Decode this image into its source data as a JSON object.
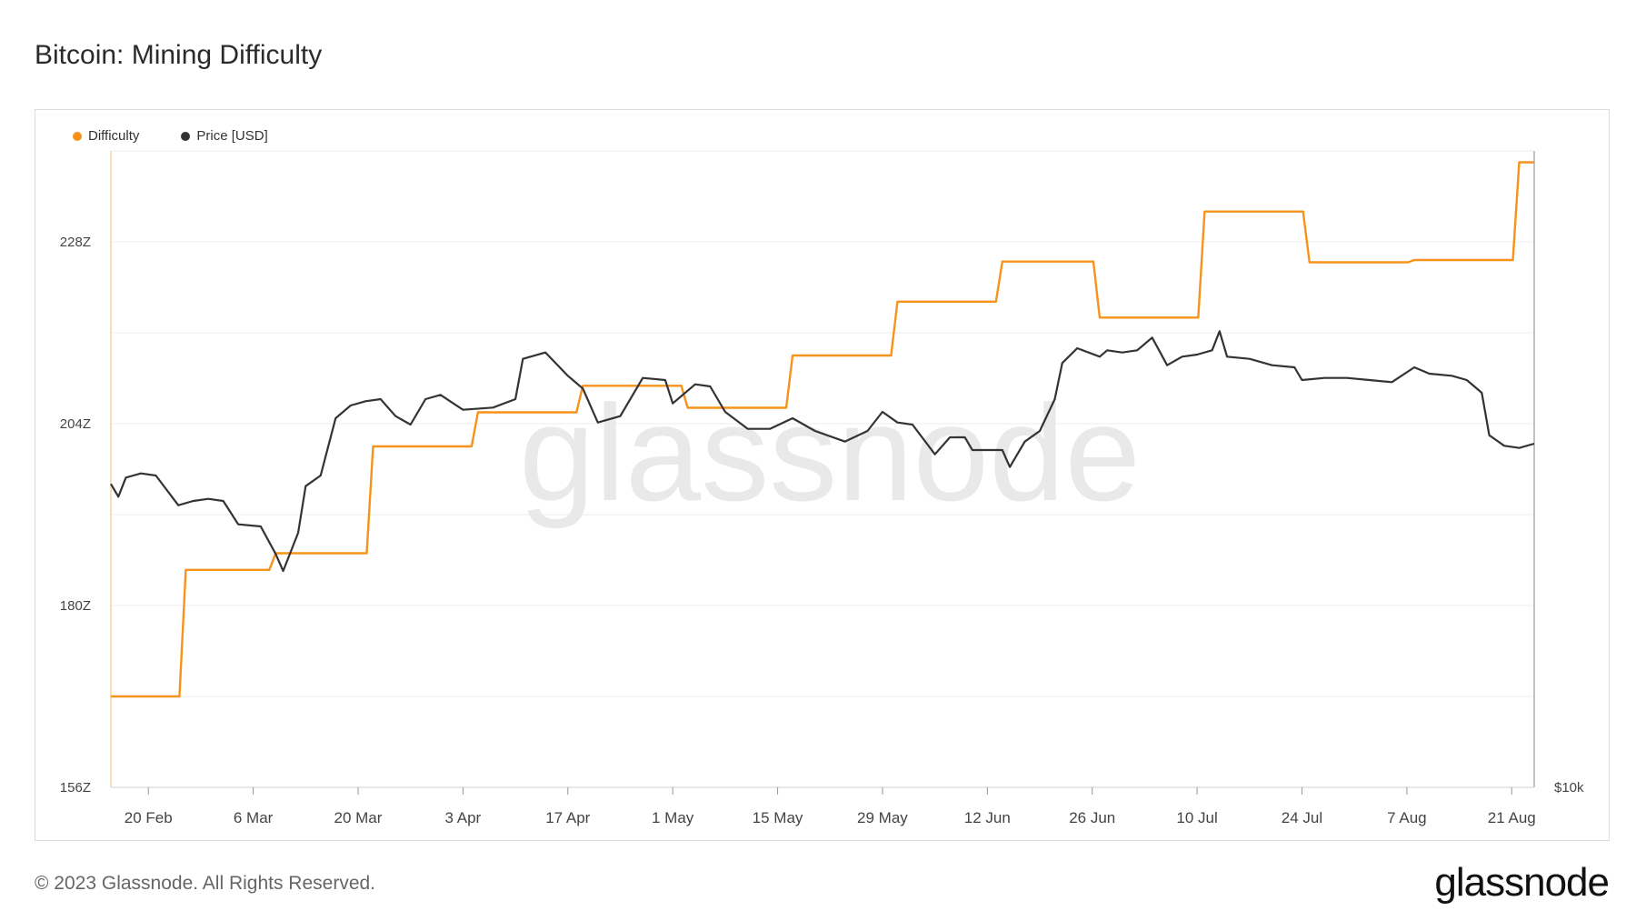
{
  "title": "Bitcoin: Mining Difficulty",
  "legend": [
    {
      "label": "Difficulty",
      "color": "#f7931a"
    },
    {
      "label": "Price [USD]",
      "color": "#333333"
    }
  ],
  "watermark": "glassnode",
  "footer": {
    "copyright": "© 2023 Glassnode. All Rights Reserved.",
    "logo": "glassnode"
  },
  "chart_data": {
    "type": "line",
    "x_range": [
      "2023-02-15",
      "2023-08-24"
    ],
    "x_ticks": [
      {
        "label": "20 Feb",
        "date": "2023-02-20"
      },
      {
        "label": "6 Mar",
        "date": "2023-03-06"
      },
      {
        "label": "20 Mar",
        "date": "2023-03-20"
      },
      {
        "label": "3 Apr",
        "date": "2023-04-03"
      },
      {
        "label": "17 Apr",
        "date": "2023-04-17"
      },
      {
        "label": "1 May",
        "date": "2023-05-01"
      },
      {
        "label": "15 May",
        "date": "2023-05-15"
      },
      {
        "label": "29 May",
        "date": "2023-05-29"
      },
      {
        "label": "12 Jun",
        "date": "2023-06-12"
      },
      {
        "label": "26 Jun",
        "date": "2023-06-26"
      },
      {
        "label": "10 Jul",
        "date": "2023-07-10"
      },
      {
        "label": "24 Jul",
        "date": "2023-07-24"
      },
      {
        "label": "7 Aug",
        "date": "2023-08-07"
      },
      {
        "label": "21 Aug",
        "date": "2023-08-21"
      }
    ],
    "y_left": {
      "min": 156,
      "max": 240,
      "unit": "Z",
      "ticks": [
        "156Z",
        "180Z",
        "204Z",
        "228Z"
      ],
      "tick_values": [
        156,
        180,
        204,
        228
      ]
    },
    "y_right": {
      "ticks": [
        "$10k"
      ]
    },
    "grid": true,
    "legend_position": "top-left",
    "series": [
      {
        "name": "Difficulty",
        "color": "#f7931a",
        "axis": "left",
        "step": true,
        "points": [
          [
            "2023-02-15",
            168.0
          ],
          [
            "2023-02-25",
            184.7
          ],
          [
            "2023-03-09",
            186.9
          ],
          [
            "2023-03-22",
            201.0
          ],
          [
            "2023-04-05",
            205.5
          ],
          [
            "2023-04-19",
            209.0
          ],
          [
            "2023-05-03",
            206.1
          ],
          [
            "2023-05-17",
            213.0
          ],
          [
            "2023-05-31",
            220.1
          ],
          [
            "2023-06-14",
            225.4
          ],
          [
            "2023-06-27",
            218.0
          ],
          [
            "2023-07-11",
            232.0
          ],
          [
            "2023-07-25",
            225.3
          ],
          [
            "2023-08-08",
            225.6
          ],
          [
            "2023-08-22",
            238.5
          ],
          [
            "2023-08-24",
            238.5
          ]
        ]
      },
      {
        "name": "Price [USD]",
        "color": "#333333",
        "axis": "right",
        "unit": "USD",
        "points": [
          [
            "2023-02-15",
            24300
          ],
          [
            "2023-02-16",
            23700
          ],
          [
            "2023-02-17",
            24600
          ],
          [
            "2023-02-18",
            24700
          ],
          [
            "2023-02-19",
            24800
          ],
          [
            "2023-02-21",
            24700
          ],
          [
            "2023-02-24",
            23300
          ],
          [
            "2023-02-26",
            23500
          ],
          [
            "2023-02-28",
            23600
          ],
          [
            "2023-03-02",
            23500
          ],
          [
            "2023-03-04",
            22400
          ],
          [
            "2023-03-07",
            22300
          ],
          [
            "2023-03-09",
            21000
          ],
          [
            "2023-03-10",
            20200
          ],
          [
            "2023-03-12",
            22000
          ],
          [
            "2023-03-13",
            24200
          ],
          [
            "2023-03-15",
            24700
          ],
          [
            "2023-03-17",
            27400
          ],
          [
            "2023-03-19",
            28000
          ],
          [
            "2023-03-21",
            28200
          ],
          [
            "2023-03-23",
            28300
          ],
          [
            "2023-03-25",
            27500
          ],
          [
            "2023-03-27",
            27100
          ],
          [
            "2023-03-29",
            28300
          ],
          [
            "2023-03-31",
            28500
          ],
          [
            "2023-04-03",
            27800
          ],
          [
            "2023-04-07",
            27900
          ],
          [
            "2023-04-10",
            28300
          ],
          [
            "2023-04-11",
            30200
          ],
          [
            "2023-04-14",
            30500
          ],
          [
            "2023-04-17",
            29400
          ],
          [
            "2023-04-19",
            28800
          ],
          [
            "2023-04-21",
            27200
          ],
          [
            "2023-04-24",
            27500
          ],
          [
            "2023-04-27",
            29300
          ],
          [
            "2023-04-30",
            29200
          ],
          [
            "2023-05-01",
            28100
          ],
          [
            "2023-05-04",
            29000
          ],
          [
            "2023-05-06",
            28900
          ],
          [
            "2023-05-08",
            27700
          ],
          [
            "2023-05-11",
            26900
          ],
          [
            "2023-05-14",
            26900
          ],
          [
            "2023-05-17",
            27400
          ],
          [
            "2023-05-20",
            26800
          ],
          [
            "2023-05-24",
            26300
          ],
          [
            "2023-05-27",
            26800
          ],
          [
            "2023-05-29",
            27700
          ],
          [
            "2023-05-31",
            27200
          ],
          [
            "2023-06-02",
            27100
          ],
          [
            "2023-06-05",
            25700
          ],
          [
            "2023-06-07",
            26500
          ],
          [
            "2023-06-09",
            26500
          ],
          [
            "2023-06-10",
            25900
          ],
          [
            "2023-06-14",
            25900
          ],
          [
            "2023-06-15",
            25100
          ],
          [
            "2023-06-17",
            26300
          ],
          [
            "2023-06-19",
            26800
          ],
          [
            "2023-06-21",
            28300
          ],
          [
            "2023-06-22",
            30000
          ],
          [
            "2023-06-24",
            30700
          ],
          [
            "2023-06-27",
            30300
          ],
          [
            "2023-06-28",
            30600
          ],
          [
            "2023-06-30",
            30500
          ],
          [
            "2023-07-02",
            30600
          ],
          [
            "2023-07-04",
            31200
          ],
          [
            "2023-07-06",
            29900
          ],
          [
            "2023-07-08",
            30300
          ],
          [
            "2023-07-10",
            30400
          ],
          [
            "2023-07-12",
            30600
          ],
          [
            "2023-07-13",
            31500
          ],
          [
            "2023-07-14",
            30300
          ],
          [
            "2023-07-17",
            30200
          ],
          [
            "2023-07-20",
            29900
          ],
          [
            "2023-07-23",
            29800
          ],
          [
            "2023-07-24",
            29200
          ],
          [
            "2023-07-27",
            29300
          ],
          [
            "2023-07-30",
            29300
          ],
          [
            "2023-08-02",
            29200
          ],
          [
            "2023-08-05",
            29100
          ],
          [
            "2023-08-08",
            29800
          ],
          [
            "2023-08-10",
            29500
          ],
          [
            "2023-08-13",
            29400
          ],
          [
            "2023-08-15",
            29200
          ],
          [
            "2023-08-17",
            28600
          ],
          [
            "2023-08-18",
            26600
          ],
          [
            "2023-08-20",
            26100
          ],
          [
            "2023-08-22",
            26000
          ],
          [
            "2023-08-24",
            26200
          ]
        ]
      }
    ]
  }
}
